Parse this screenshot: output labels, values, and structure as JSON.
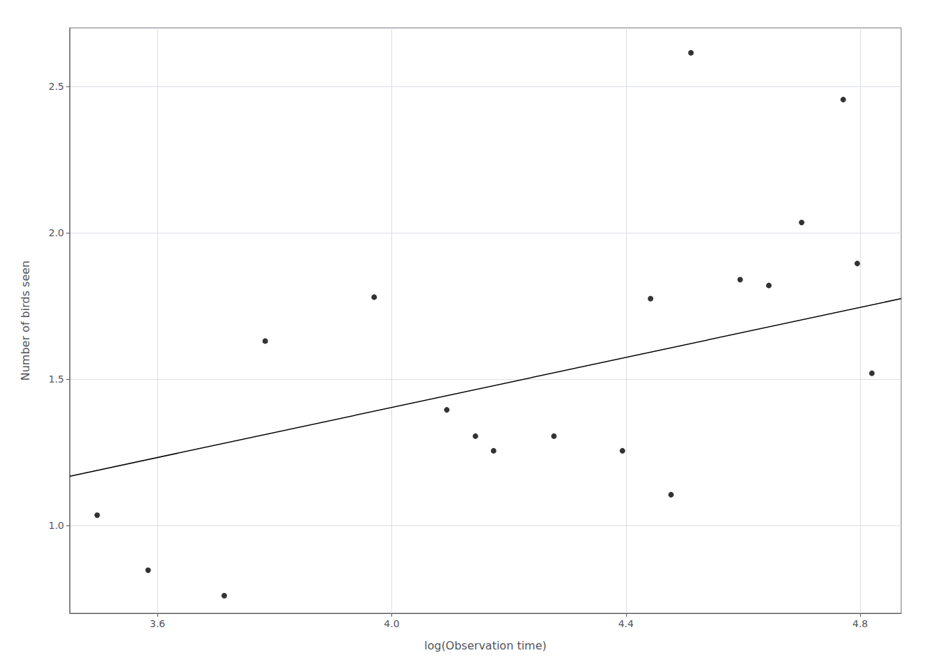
{
  "chart_data": {
    "type": "scatter",
    "xlabel": "log(Observation time)",
    "ylabel": "Number of birds seen",
    "series": [
      {
        "type": "scatter",
        "color": "#000000",
        "x": [
          3.497,
          3.584,
          3.714,
          3.784,
          3.97,
          4.094,
          4.143,
          4.174,
          4.277,
          4.394,
          4.442,
          4.477,
          4.511,
          4.595,
          4.644,
          4.7,
          4.771,
          4.795,
          4.82
        ],
        "values": [
          1.035,
          0.847,
          0.76,
          1.63,
          1.78,
          1.395,
          1.305,
          1.255,
          1.305,
          1.255,
          1.775,
          1.105,
          2.615,
          1.84,
          1.82,
          2.035,
          2.455,
          1.895,
          1.52
        ]
      },
      {
        "type": "line",
        "color": "#000000",
        "x": [
          3.45,
          4.87
        ],
        "values": [
          1.168,
          1.775
        ]
      }
    ],
    "xlim": [
      3.45,
      4.87
    ],
    "ylim": [
      0.7,
      2.7
    ],
    "xticks": [
      3.6,
      {
        "value": 4,
        "label": "4.0"
      },
      4.4,
      4.8
    ],
    "yticks": [
      {
        "value": 1,
        "label": "1.0"
      },
      1.5,
      {
        "value": 2,
        "label": "2.0"
      },
      2.5
    ],
    "grid": true
  }
}
